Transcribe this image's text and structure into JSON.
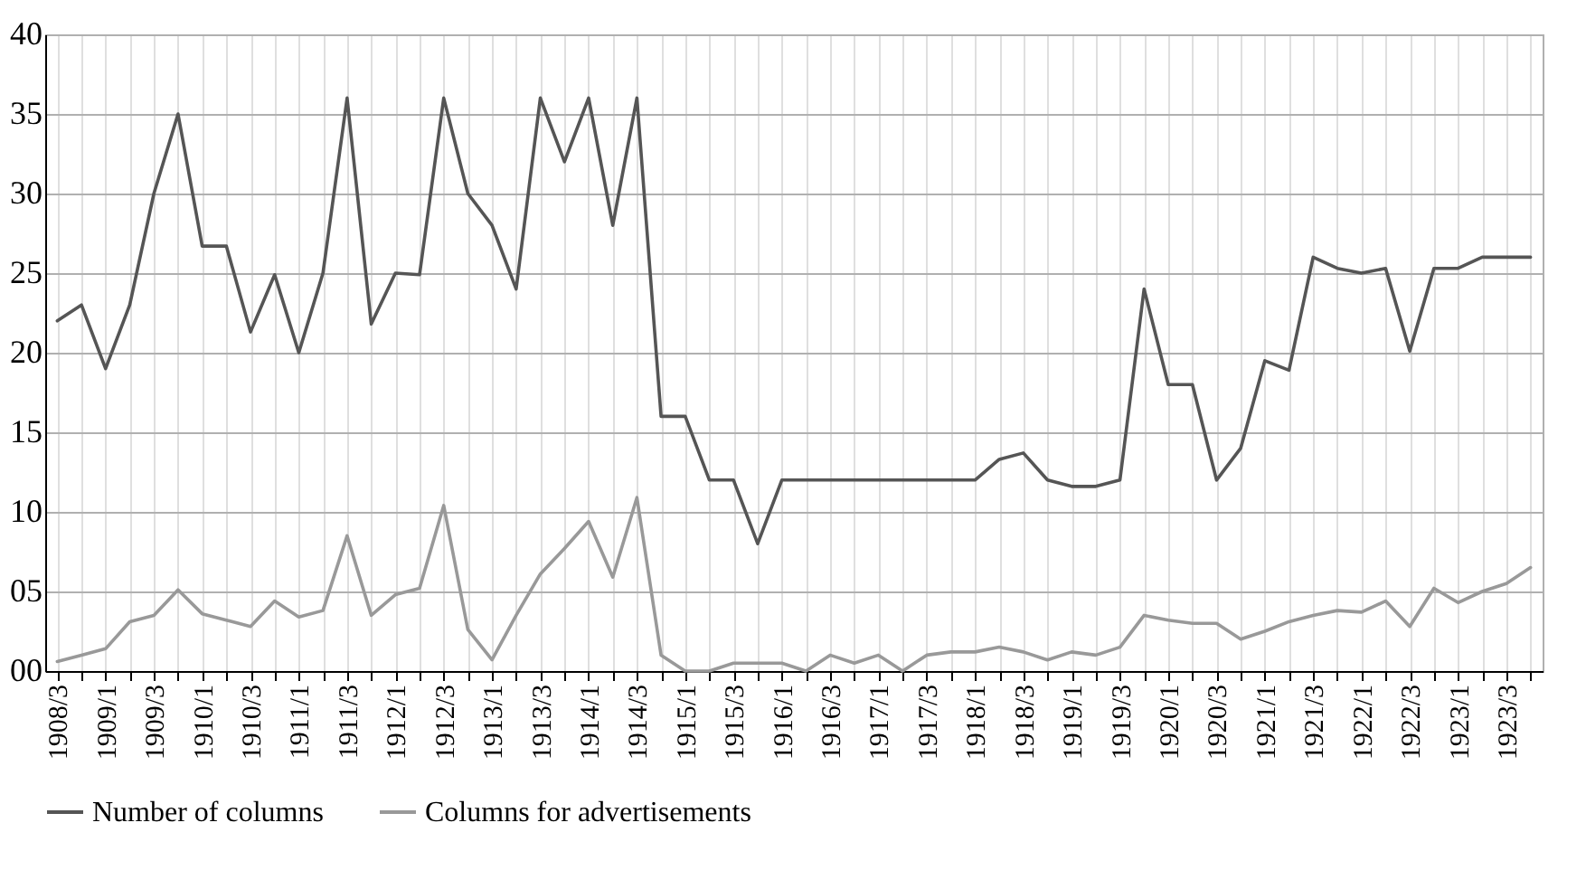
{
  "chart_data": {
    "type": "line",
    "categories": [
      "1908/3",
      null,
      "1909/1",
      null,
      "1909/3",
      null,
      "1910/1",
      null,
      "1910/3",
      null,
      "1911/1",
      null,
      "1911/3",
      null,
      "1912/1",
      null,
      "1912/3",
      null,
      "1913/1",
      null,
      "1913/3",
      null,
      "1914/1",
      null,
      "1914/3",
      null,
      "1915/1",
      null,
      "1915/3",
      null,
      "1916/1",
      null,
      "1916/3",
      null,
      "1917/1",
      null,
      "1917/3",
      null,
      "1918/1",
      null,
      "1918/3",
      null,
      "1919/1",
      null,
      "1919/3",
      null,
      "1920/1",
      null,
      "1920/3",
      null,
      "1921/1",
      null,
      "1921/3",
      null,
      "1922/1",
      null,
      "1922/3",
      null,
      "1923/1",
      null,
      "1923/3",
      null
    ],
    "series": [
      {
        "name": "Number of columns",
        "color": "#555555",
        "values": [
          22,
          23,
          19,
          23,
          30,
          35,
          26.7,
          26.7,
          21.3,
          24.9,
          20,
          25,
          36,
          21.8,
          25,
          24.9,
          36,
          30,
          28,
          24,
          36,
          32,
          36,
          28,
          36,
          16,
          16,
          12,
          12,
          8,
          12,
          12,
          12,
          12,
          12,
          12,
          12,
          12,
          12,
          13.3,
          13.7,
          12,
          11.6,
          11.6,
          12,
          24,
          18,
          18,
          12,
          14,
          19.5,
          18.9,
          26,
          25.3,
          25,
          25.3,
          20.1,
          25.3,
          25.3,
          26,
          26,
          26
        ]
      },
      {
        "name": "Columns for advertisements",
        "color": "#999999",
        "values": [
          0.6,
          1.0,
          1.4,
          3.1,
          3.5,
          5.1,
          3.6,
          3.2,
          2.8,
          4.4,
          3.4,
          3.8,
          8.5,
          3.5,
          4.8,
          5.2,
          10.4,
          2.6,
          0.7,
          3.5,
          6.1,
          7.7,
          9.4,
          5.9,
          10.9,
          1.0,
          0,
          0,
          0.5,
          0.5,
          0.5,
          0,
          1.0,
          0.5,
          1.0,
          0,
          1.0,
          1.2,
          1.2,
          1.5,
          1.2,
          0.7,
          1.2,
          1.0,
          1.5,
          3.5,
          3.2,
          3.0,
          3.0,
          2.0,
          2.5,
          3.1,
          3.5,
          3.8,
          3.7,
          4.4,
          2.8,
          5.2,
          4.3,
          5.0,
          5.5,
          6.5
        ]
      }
    ],
    "ylim": [
      0,
      40
    ],
    "yticks": [
      {
        "value": 0,
        "label": "00"
      },
      {
        "value": 5,
        "label": "05"
      },
      10,
      15,
      20,
      25,
      30,
      35,
      40
    ],
    "grid": true,
    "legend": "bottom",
    "marker": "none",
    "line_style": "solid"
  }
}
